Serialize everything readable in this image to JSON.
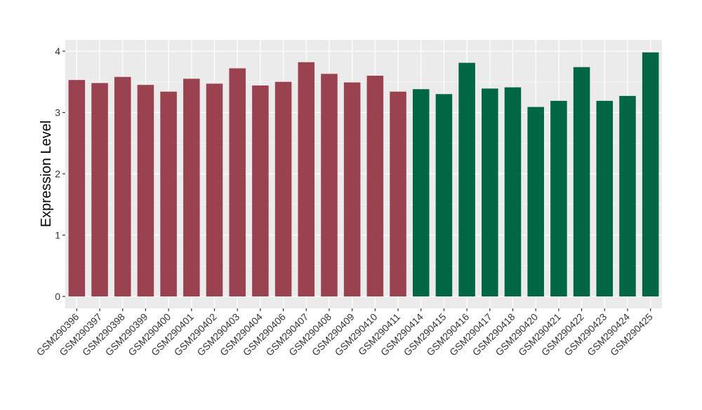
{
  "chart_data": {
    "type": "bar",
    "ylabel": "Expression Level",
    "ylim": [
      -0.15,
      4.2
    ],
    "yticks": [
      0,
      1,
      2,
      3,
      4
    ],
    "grid": true,
    "categories": [
      "GSM290396",
      "GSM290397",
      "GSM290398",
      "GSM290399",
      "GSM290400",
      "GSM290401",
      "GSM290402",
      "GSM290403",
      "GSM290404",
      "GSM290406",
      "GSM290407",
      "GSM290408",
      "GSM290409",
      "GSM290410",
      "GSM290411",
      "GSM290414",
      "GSM290415",
      "GSM290416",
      "GSM290417",
      "GSM290418",
      "GSM290420",
      "GSM290421",
      "GSM290422",
      "GSM290423",
      "GSM290424",
      "GSM290425"
    ],
    "values": [
      3.53,
      3.48,
      3.58,
      3.45,
      3.34,
      3.55,
      3.47,
      3.72,
      3.44,
      3.5,
      3.82,
      3.63,
      3.49,
      3.6,
      3.34,
      3.38,
      3.3,
      3.81,
      3.39,
      3.41,
      3.09,
      3.19,
      3.74,
      3.19,
      3.27,
      3.98
    ],
    "groups": [
      0,
      0,
      0,
      0,
      0,
      0,
      0,
      0,
      0,
      0,
      0,
      0,
      0,
      0,
      0,
      1,
      1,
      1,
      1,
      1,
      1,
      1,
      1,
      1,
      1,
      1
    ],
    "colors": [
      "#9A4250",
      "#006644"
    ],
    "panel_color": "#EBEBEB",
    "grid_color": "#FFFFFF"
  }
}
